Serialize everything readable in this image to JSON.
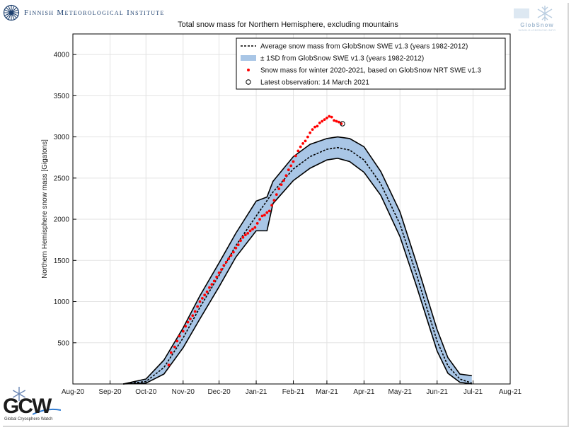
{
  "header": {
    "org_name": "Finnish Meteorological Institute",
    "org_logo_icon": "fmi-sunburst-icon",
    "partner_logo_text": "GlobSnow",
    "partner_logo_url": "WWW.GLOBSNOW.INFO",
    "partner_logo_icon": "snowflake-icon"
  },
  "footer": {
    "gcw_logo_text": "GCW",
    "gcw_subtitle": "Global Cryosphere Watch",
    "gcw_logo_icon": "snowflake-icon"
  },
  "colors": {
    "band_fill": "#a9c6e6",
    "band_edge": "#000000",
    "mean_line": "#000000",
    "observations": "#ff0000",
    "grid": "#e2e2e2"
  },
  "chart_data": {
    "type": "line",
    "title": "Total snow mass for Northern Hemisphere, excluding mountains",
    "xlabel": "",
    "ylabel": "Northern Hemisphere snow mass [Gigatons]",
    "xlim": [
      "2020-08-01",
      "2021-08-01"
    ],
    "ylim": [
      0,
      4250
    ],
    "grid": true,
    "legend_position": "top-right",
    "x_ticks": [
      {
        "date": "2020-08-01",
        "label": "Aug-20"
      },
      {
        "date": "2020-09-01",
        "label": "Sep-20"
      },
      {
        "date": "2020-10-01",
        "label": "Oct-20"
      },
      {
        "date": "2020-11-01",
        "label": "Nov-20"
      },
      {
        "date": "2020-12-01",
        "label": "Dec-20"
      },
      {
        "date": "2021-01-01",
        "label": "Jan-21"
      },
      {
        "date": "2021-02-01",
        "label": "Feb-21"
      },
      {
        "date": "2021-03-01",
        "label": "Mar-21"
      },
      {
        "date": "2021-04-01",
        "label": "Apr-21"
      },
      {
        "date": "2021-05-01",
        "label": "May-21"
      },
      {
        "date": "2021-06-01",
        "label": "Jun-21"
      },
      {
        "date": "2021-07-01",
        "label": "Jul-21"
      },
      {
        "date": "2021-08-01",
        "label": "Aug-21"
      }
    ],
    "y_ticks": [
      500,
      1000,
      1500,
      2000,
      2500,
      3000,
      3500,
      4000
    ],
    "legend": [
      {
        "label": "Average snow mass from GlobSnow SWE v1.3 (years 1982-2012)",
        "marker": "dashed-line"
      },
      {
        "label": "± 1SD from GlobSnow SWE v1.3 (years 1982-2012)",
        "marker": "band"
      },
      {
        "label": "Snow mass for winter 2020-2021, based on GlobSnow NRT SWE v1.3",
        "marker": "red-dot"
      },
      {
        "label": "Latest observation: 14 March 2021",
        "marker": "open-circle"
      }
    ],
    "series": [
      {
        "name": "Average snow mass from GlobSnow SWE v1.3 (years 1982-2012)",
        "style": "dashed",
        "x": [
          "2020-09-12",
          "2020-10-01",
          "2020-10-16",
          "2020-11-01",
          "2020-11-15",
          "2020-12-01",
          "2020-12-15",
          "2021-01-01",
          "2021-01-15",
          "2021-02-01",
          "2021-02-15",
          "2021-03-01",
          "2021-03-10",
          "2021-03-20",
          "2021-04-01",
          "2021-04-15",
          "2021-05-01",
          "2021-05-15",
          "2021-06-01",
          "2021-06-10",
          "2021-06-20",
          "2021-06-30"
        ],
        "values": [
          0,
          30,
          200,
          560,
          930,
          1320,
          1680,
          2040,
          2330,
          2610,
          2760,
          2850,
          2870,
          2840,
          2720,
          2430,
          1940,
          1320,
          520,
          220,
          60,
          10
        ]
      },
      {
        "name": "± 1SD from GlobSnow SWE v1.3 (years 1982-2012)",
        "style": "band",
        "x": [
          "2020-09-12",
          "2020-10-01",
          "2020-10-16",
          "2020-11-01",
          "2020-11-15",
          "2020-12-01",
          "2020-12-15",
          "2021-01-01",
          "2021-01-10",
          "2021-01-15",
          "2021-02-01",
          "2021-02-15",
          "2021-03-01",
          "2021-03-10",
          "2021-03-20",
          "2021-04-01",
          "2021-04-15",
          "2021-05-01",
          "2021-05-15",
          "2021-06-01",
          "2021-06-10",
          "2021-06-20",
          "2021-06-30"
        ],
        "upper": [
          0,
          60,
          290,
          680,
          1070,
          1470,
          1830,
          2220,
          2270,
          2460,
          2760,
          2910,
          2980,
          3000,
          2980,
          2880,
          2580,
          2090,
          1460,
          660,
          320,
          120,
          100
        ],
        "lower": [
          0,
          10,
          120,
          440,
          790,
          1180,
          1540,
          1860,
          1860,
          2190,
          2470,
          2620,
          2720,
          2740,
          2700,
          2570,
          2290,
          1790,
          1180,
          400,
          130,
          20,
          0
        ]
      },
      {
        "name": "Snow mass for winter 2020-2021, based on GlobSnow NRT SWE v1.3",
        "style": "markers",
        "x": [
          "2020-10-20",
          "2020-10-22",
          "2020-10-25",
          "2020-10-27",
          "2020-10-29",
          "2020-11-01",
          "2020-11-03",
          "2020-11-05",
          "2020-11-07",
          "2020-11-09",
          "2020-11-11",
          "2020-11-13",
          "2020-11-15",
          "2020-11-17",
          "2020-11-19",
          "2020-11-21",
          "2020-11-23",
          "2020-11-25",
          "2020-11-27",
          "2020-11-29",
          "2020-12-01",
          "2020-12-03",
          "2020-12-05",
          "2020-12-07",
          "2020-12-09",
          "2020-12-11",
          "2020-12-13",
          "2020-12-15",
          "2020-12-17",
          "2020-12-19",
          "2020-12-21",
          "2020-12-23",
          "2020-12-25",
          "2020-12-27",
          "2020-12-29",
          "2020-12-31",
          "2021-01-02",
          "2021-01-04",
          "2021-01-06",
          "2021-01-08",
          "2021-01-10",
          "2021-01-12",
          "2021-01-14",
          "2021-01-16",
          "2021-01-18",
          "2021-01-20",
          "2021-01-22",
          "2021-01-24",
          "2021-01-26",
          "2021-01-28",
          "2021-01-30",
          "2021-02-01",
          "2021-02-03",
          "2021-02-05",
          "2021-02-07",
          "2021-02-09",
          "2021-02-11",
          "2021-02-13",
          "2021-02-15",
          "2021-02-17",
          "2021-02-19",
          "2021-02-21",
          "2021-02-23",
          "2021-02-25",
          "2021-02-27",
          "2021-03-01",
          "2021-03-03",
          "2021-03-05",
          "2021-03-07",
          "2021-03-09",
          "2021-03-11",
          "2021-03-13"
        ],
        "values": [
          230,
          380,
          450,
          520,
          580,
          640,
          700,
          750,
          790,
          830,
          880,
          940,
          1000,
          1040,
          1080,
          1120,
          1170,
          1210,
          1250,
          1300,
          1350,
          1390,
          1440,
          1480,
          1520,
          1560,
          1600,
          1650,
          1690,
          1740,
          1780,
          1810,
          1830,
          1860,
          1880,
          1900,
          1950,
          2000,
          2040,
          2050,
          2080,
          2100,
          2170,
          2230,
          2300,
          2370,
          2420,
          2470,
          2530,
          2600,
          2650,
          2700,
          2770,
          2830,
          2880,
          2920,
          2950,
          3000,
          3050,
          3090,
          3120,
          3130,
          3170,
          3190,
          3210,
          3230,
          3250,
          3240,
          3200,
          3190,
          3180,
          3160
        ]
      },
      {
        "name": "Latest observation: 14 March 2021",
        "style": "open-circle",
        "x": [
          "2021-03-14"
        ],
        "values": [
          3160
        ]
      }
    ]
  }
}
